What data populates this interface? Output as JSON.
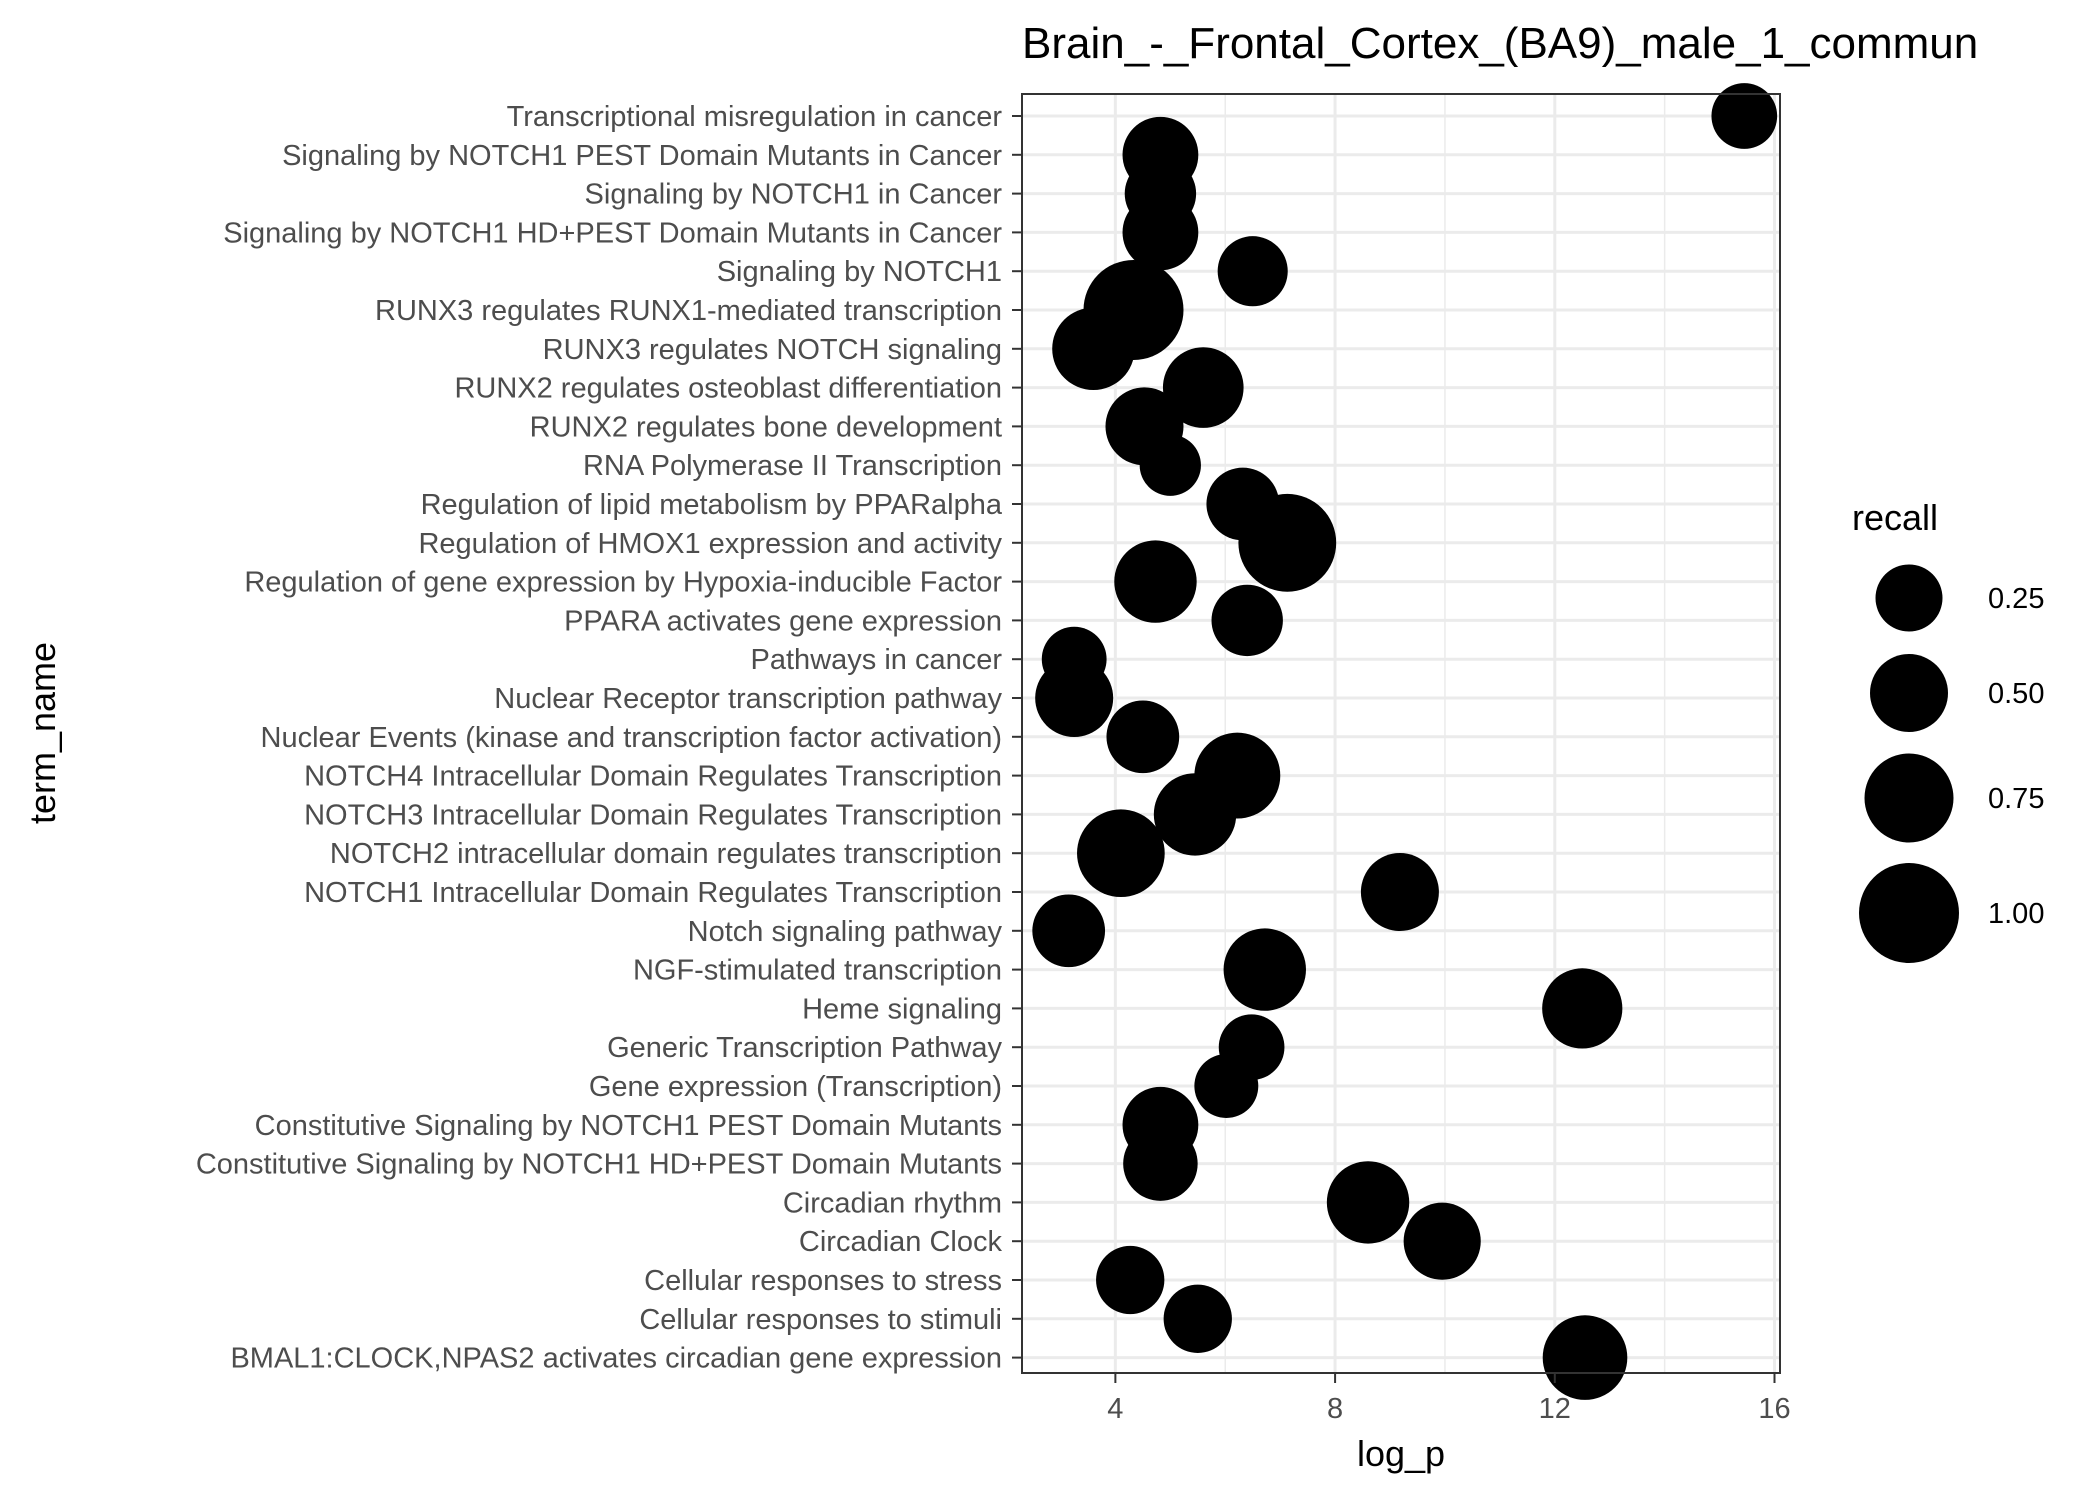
{
  "chart_data": {
    "type": "scatter",
    "title": "Brain_-_Frontal_Cortex_(BA9)_male_1_commun",
    "xlabel": "log_p",
    "ylabel": "term_name",
    "xlim": [
      2.3,
      16.1
    ],
    "xticks": [
      4,
      8,
      12,
      16
    ],
    "grid": true,
    "legend": {
      "title": "recall",
      "placement": "right",
      "values": [
        0.25,
        0.5,
        0.75,
        1.0
      ],
      "labels": [
        "0.25",
        "0.50",
        "0.75",
        "1.00"
      ]
    },
    "colors": {
      "point": "#000000",
      "grid": "#ebebeb",
      "panel_border": "#333333"
    },
    "categories": [
      "Transcriptional misregulation in cancer",
      "Signaling by NOTCH1 PEST Domain Mutants in Cancer",
      "Signaling by NOTCH1 in Cancer",
      "Signaling by NOTCH1 HD+PEST Domain Mutants in Cancer",
      "Signaling by NOTCH1",
      "RUNX3 regulates RUNX1-mediated transcription",
      "RUNX3 regulates NOTCH signaling",
      "RUNX2 regulates osteoblast differentiation",
      "RUNX2 regulates bone development",
      "RNA Polymerase II Transcription",
      "Regulation of lipid metabolism by PPARalpha",
      "Regulation of HMOX1 expression and activity",
      "Regulation of gene expression by Hypoxia-inducible Factor",
      "PPARA activates gene expression",
      "Pathways in cancer",
      "Nuclear Receptor transcription pathway",
      "Nuclear Events (kinase and transcription factor activation)",
      "NOTCH4 Intracellular Domain Regulates Transcription",
      "NOTCH3 Intracellular Domain Regulates Transcription",
      "NOTCH2 intracellular domain regulates transcription",
      "NOTCH1 Intracellular Domain Regulates Transcription",
      "Notch signaling pathway",
      "NGF-stimulated transcription",
      "Heme signaling",
      "Generic Transcription Pathway",
      "Gene expression (Transcription)",
      "Constitutive Signaling by NOTCH1 PEST Domain Mutants",
      "Constitutive Signaling by NOTCH1 HD+PEST Domain Mutants",
      "Circadian rhythm",
      "Circadian Clock",
      "Cellular responses to stress",
      "Cellular responses to stimuli",
      "BMAL1:CLOCK,NPAS2 activates circadian gene expression"
    ],
    "x": [
      15.45,
      4.82,
      4.82,
      4.82,
      6.5,
      4.33,
      3.6,
      5.6,
      4.53,
      5.0,
      6.32,
      7.13,
      4.73,
      6.4,
      3.25,
      3.25,
      4.5,
      6.22,
      5.45,
      4.1,
      9.18,
      3.15,
      6.72,
      12.5,
      6.48,
      6.02,
      4.82,
      4.82,
      8.6,
      9.95,
      4.27,
      5.5,
      12.55
    ],
    "recall": [
      0.22,
      0.45,
      0.35,
      0.45,
      0.32,
      1.0,
      0.6,
      0.56,
      0.5,
      0.12,
      0.38,
      0.95,
      0.6,
      0.35,
      0.2,
      0.5,
      0.38,
      0.68,
      0.6,
      0.72,
      0.5,
      0.38,
      0.6,
      0.55,
      0.22,
      0.18,
      0.45,
      0.42,
      0.6,
      0.48,
      0.28,
      0.28,
      0.65
    ]
  }
}
